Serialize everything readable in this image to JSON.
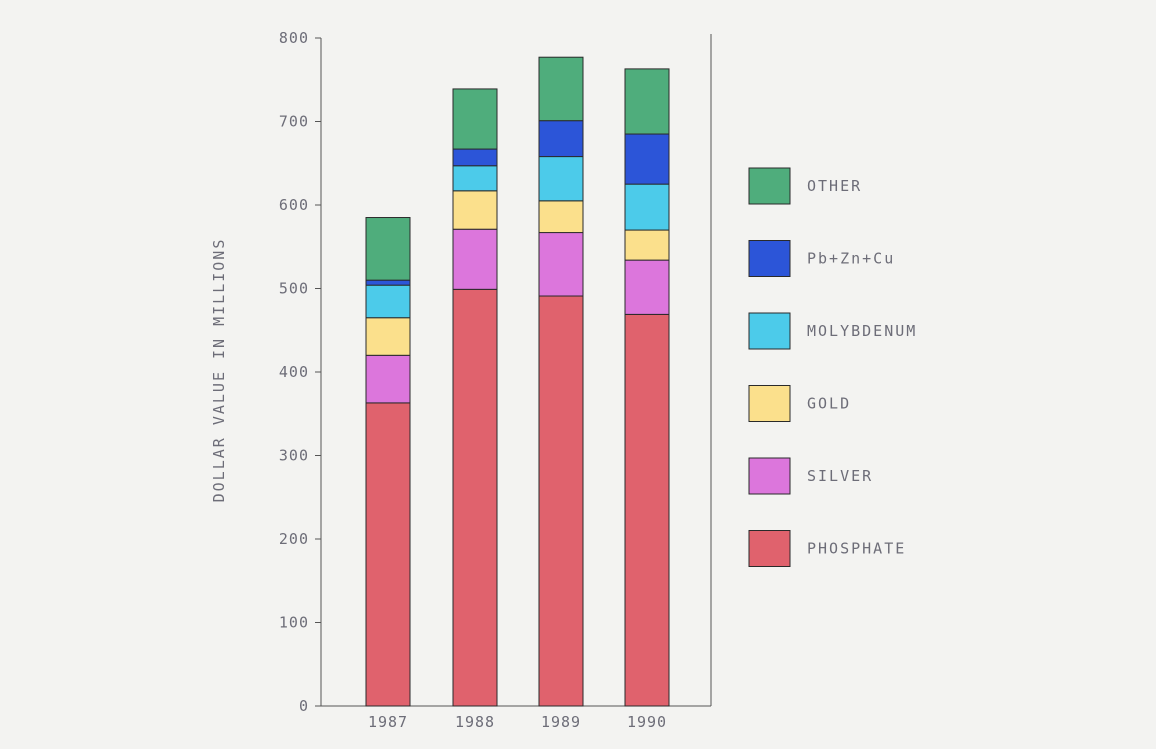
{
  "chart_data": {
    "type": "bar",
    "stacked": true,
    "title": "",
    "xlabel": "",
    "ylabel": "DOLLAR VALUE IN MILLIONS",
    "ylim": [
      0,
      800
    ],
    "yticks": [
      0,
      100,
      200,
      300,
      400,
      500,
      600,
      700,
      800
    ],
    "grid": false,
    "legend_position": "right",
    "categories": [
      "1987",
      "1988",
      "1989",
      "1990"
    ],
    "series": [
      {
        "name": "PHOSPHATE",
        "color": "#e0626d",
        "values": [
          363,
          499,
          491,
          469
        ]
      },
      {
        "name": "SILVER",
        "color": "#dc76dc",
        "values": [
          57,
          72,
          76,
          65
        ]
      },
      {
        "name": "GOLD",
        "color": "#fbe08c",
        "values": [
          45,
          46,
          38,
          36
        ]
      },
      {
        "name": "MOLYBDENUM",
        "color": "#4ccbea",
        "values": [
          39,
          30,
          53,
          55
        ]
      },
      {
        "name": "Pb+Zn+Cu",
        "color": "#2c55d8",
        "values": [
          6,
          20,
          43,
          60
        ]
      },
      {
        "name": "OTHER",
        "color": "#4fad7c",
        "values": [
          75,
          72,
          76,
          78
        ]
      }
    ]
  }
}
